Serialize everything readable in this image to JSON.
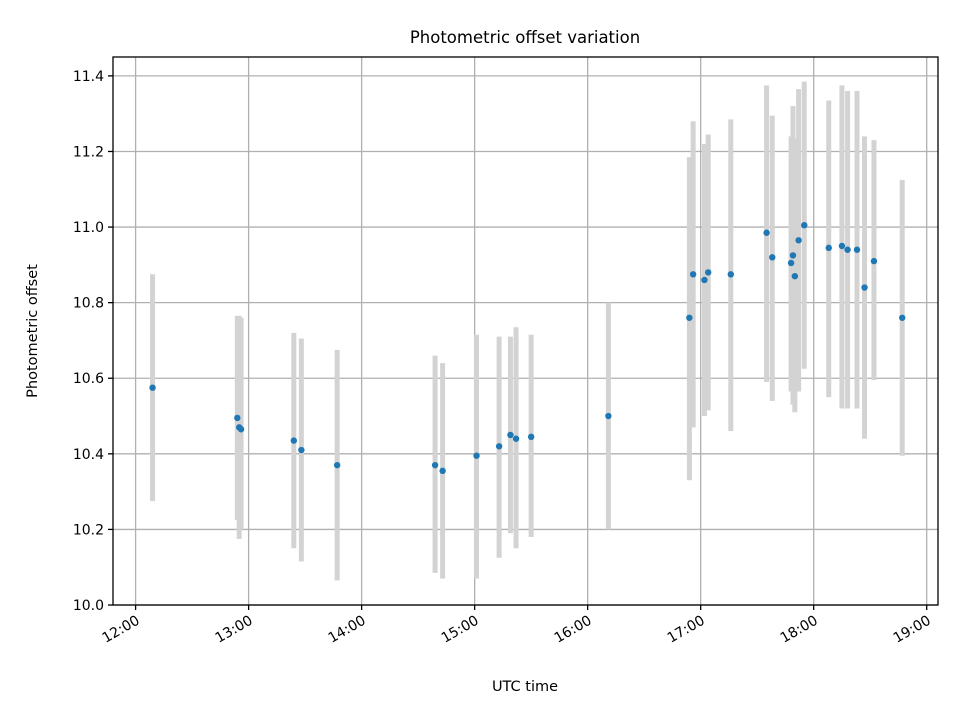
{
  "chart_data": {
    "type": "scatter",
    "title": "Photometric offset variation",
    "xlabel": "UTC time",
    "ylabel": "Photometric offset",
    "xlim": [
      "11:48",
      "19:06"
    ],
    "ylim": [
      10.0,
      11.45
    ],
    "x_ticks": [
      "12:00",
      "13:00",
      "14:00",
      "15:00",
      "16:00",
      "17:00",
      "18:00",
      "19:00"
    ],
    "y_ticks": [
      "10.0",
      "10.2",
      "10.4",
      "10.6",
      "10.8",
      "11.0",
      "11.2",
      "11.4"
    ],
    "grid": true,
    "point_color": "#1f77b4",
    "errorbar_color": "#d3d3d3",
    "points": [
      {
        "t": "12:09",
        "y": 10.575,
        "lo": 10.275,
        "hi": 10.875
      },
      {
        "t": "12:54",
        "y": 10.495,
        "lo": 10.225,
        "hi": 10.765
      },
      {
        "t": "12:55",
        "y": 10.47,
        "lo": 10.175,
        "hi": 10.765
      },
      {
        "t": "12:56",
        "y": 10.465,
        "lo": 10.2,
        "hi": 10.76
      },
      {
        "t": "13:24",
        "y": 10.435,
        "lo": 10.15,
        "hi": 10.72
      },
      {
        "t": "13:28",
        "y": 10.41,
        "lo": 10.115,
        "hi": 10.705
      },
      {
        "t": "13:47",
        "y": 10.37,
        "lo": 10.065,
        "hi": 10.675
      },
      {
        "t": "14:39",
        "y": 10.37,
        "lo": 10.085,
        "hi": 10.66
      },
      {
        "t": "14:43",
        "y": 10.355,
        "lo": 10.07,
        "hi": 10.64
      },
      {
        "t": "15:01",
        "y": 10.395,
        "lo": 10.07,
        "hi": 10.715
      },
      {
        "t": "15:13",
        "y": 10.42,
        "lo": 10.125,
        "hi": 10.71
      },
      {
        "t": "15:19",
        "y": 10.45,
        "lo": 10.19,
        "hi": 10.71
      },
      {
        "t": "15:22",
        "y": 10.44,
        "lo": 10.15,
        "hi": 10.735
      },
      {
        "t": "15:30",
        "y": 10.445,
        "lo": 10.18,
        "hi": 10.715
      },
      {
        "t": "16:11",
        "y": 10.5,
        "lo": 10.2,
        "hi": 10.8
      },
      {
        "t": "16:54",
        "y": 10.76,
        "lo": 10.33,
        "hi": 11.185
      },
      {
        "t": "16:56",
        "y": 10.875,
        "lo": 10.47,
        "hi": 11.28
      },
      {
        "t": "17:02",
        "y": 10.86,
        "lo": 10.5,
        "hi": 11.22
      },
      {
        "t": "17:04",
        "y": 10.88,
        "lo": 10.515,
        "hi": 11.245
      },
      {
        "t": "17:16",
        "y": 10.875,
        "lo": 10.46,
        "hi": 11.285
      },
      {
        "t": "17:35",
        "y": 10.985,
        "lo": 10.59,
        "hi": 11.375
      },
      {
        "t": "17:38",
        "y": 10.92,
        "lo": 10.54,
        "hi": 11.295
      },
      {
        "t": "17:48",
        "y": 10.905,
        "lo": 10.565,
        "hi": 11.24
      },
      {
        "t": "17:49",
        "y": 10.925,
        "lo": 10.53,
        "hi": 11.32
      },
      {
        "t": "17:50",
        "y": 10.87,
        "lo": 10.51,
        "hi": 11.235
      },
      {
        "t": "17:52",
        "y": 10.965,
        "lo": 10.565,
        "hi": 11.365
      },
      {
        "t": "17:55",
        "y": 11.005,
        "lo": 10.625,
        "hi": 11.385
      },
      {
        "t": "18:08",
        "y": 10.945,
        "lo": 10.55,
        "hi": 11.335
      },
      {
        "t": "18:15",
        "y": 10.95,
        "lo": 10.52,
        "hi": 11.375
      },
      {
        "t": "18:18",
        "y": 10.94,
        "lo": 10.52,
        "hi": 11.36
      },
      {
        "t": "18:23",
        "y": 10.94,
        "lo": 10.52,
        "hi": 11.36
      },
      {
        "t": "18:27",
        "y": 10.84,
        "lo": 10.44,
        "hi": 11.24
      },
      {
        "t": "18:32",
        "y": 10.91,
        "lo": 10.595,
        "hi": 11.23
      },
      {
        "t": "18:47",
        "y": 10.76,
        "lo": 10.395,
        "hi": 11.125
      }
    ]
  }
}
